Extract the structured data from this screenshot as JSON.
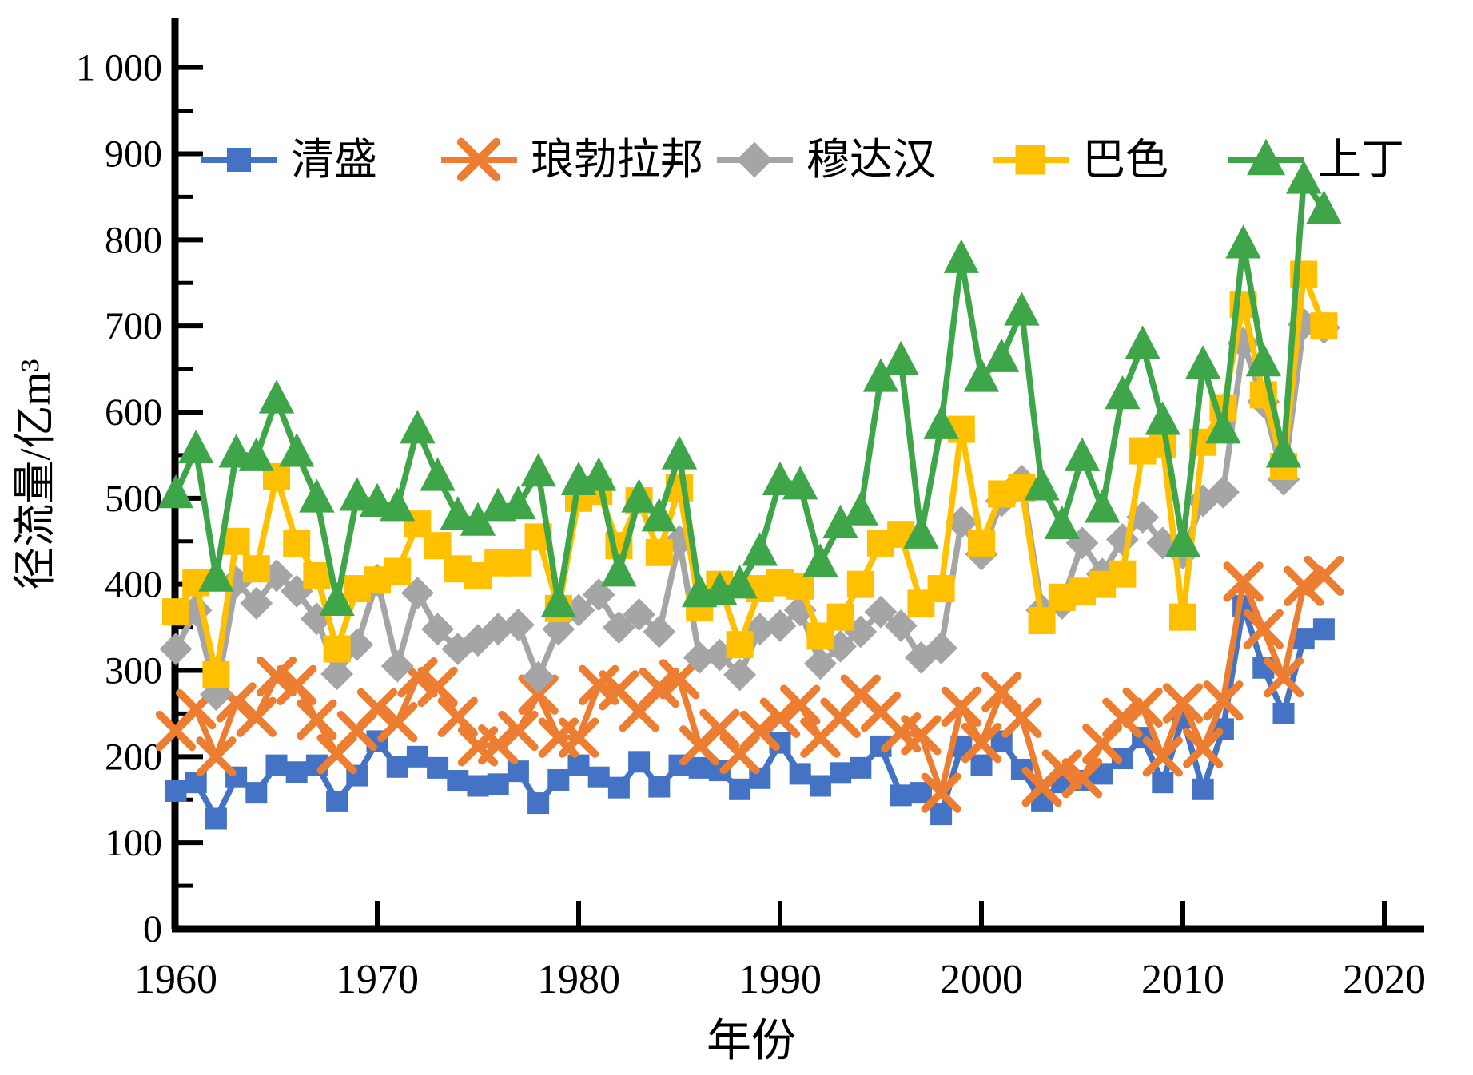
{
  "figure": {
    "y_axis": {
      "label": "径流量/亿m³",
      "tick_labels": [
        "0",
        "100",
        "200",
        "300",
        "400",
        "500",
        "600",
        "700",
        "800",
        "900",
        "1 000"
      ],
      "tick_values": [
        0,
        100,
        200,
        300,
        400,
        500,
        600,
        700,
        800,
        900,
        1000
      ],
      "minor_step": 50
    },
    "x_axis": {
      "label": "年份",
      "tick_labels": [
        "1960",
        "1970",
        "1980",
        "1990",
        "2000",
        "2010",
        "2020"
      ],
      "tick_values": [
        1960,
        1970,
        1980,
        1990,
        2000,
        2010,
        2020
      ]
    },
    "legend": [
      {
        "label": "清盛",
        "marker": "square",
        "color": "#4472C4"
      },
      {
        "label": "琅勃拉邦",
        "marker": "x",
        "color": "#ED7D31"
      },
      {
        "label": "穆达汉",
        "marker": "diamond",
        "color": "#A5A5A5"
      },
      {
        "label": "巴色",
        "marker": "square",
        "color": "#FFC000"
      },
      {
        "label": "上丁",
        "marker": "triangle",
        "color": "#3EA648"
      }
    ]
  },
  "chart_data": {
    "type": "line",
    "title": "",
    "xlabel": "年份",
    "ylabel": "径流量/亿m³",
    "xlim": [
      1957,
      2022
    ],
    "ylim": [
      0,
      1050
    ],
    "grid": false,
    "legend_position": "top",
    "x": [
      1960,
      1961,
      1962,
      1963,
      1964,
      1965,
      1966,
      1967,
      1968,
      1969,
      1970,
      1971,
      1972,
      1973,
      1974,
      1975,
      1976,
      1977,
      1978,
      1979,
      1980,
      1981,
      1982,
      1983,
      1984,
      1985,
      1986,
      1987,
      1988,
      1989,
      1990,
      1991,
      1992,
      1993,
      1994,
      1995,
      1996,
      1997,
      1998,
      1999,
      2000,
      2001,
      2002,
      2003,
      2004,
      2005,
      2006,
      2007,
      2008,
      2009,
      2010,
      2011,
      2012,
      2013,
      2014,
      2015,
      2016,
      2017
    ],
    "series": [
      {
        "name": "清盛",
        "marker": "square",
        "color": "#4472C4",
        "values": [
          160,
          170,
          128,
          176,
          158,
          190,
          182,
          190,
          148,
          178,
          218,
          188,
          200,
          187,
          172,
          166,
          168,
          183,
          146,
          173,
          190,
          176,
          164,
          194,
          165,
          190,
          187,
          184,
          162,
          175,
          216,
          180,
          166,
          181,
          187,
          212,
          155,
          158,
          133,
          212,
          190,
          218,
          185,
          148,
          170,
          172,
          180,
          198,
          222,
          170,
          245,
          162,
          232,
          375,
          303,
          250,
          337,
          348
        ]
      },
      {
        "name": "琅勃拉邦",
        "marker": "x",
        "color": "#ED7D31",
        "values": [
          230,
          255,
          200,
          263,
          246,
          293,
          283,
          243,
          203,
          230,
          256,
          240,
          292,
          281,
          246,
          212,
          214,
          230,
          272,
          222,
          222,
          283,
          277,
          252,
          280,
          290,
          213,
          232,
          203,
          230,
          245,
          260,
          222,
          245,
          272,
          252,
          228,
          225,
          158,
          258,
          216,
          275,
          245,
          165,
          185,
          175,
          215,
          245,
          257,
          200,
          262,
          210,
          265,
          403,
          348,
          292,
          398,
          410
        ]
      },
      {
        "name": "穆达汉",
        "marker": "diamond",
        "color": "#A5A5A5",
        "values": [
          325,
          370,
          272,
          403,
          378,
          410,
          392,
          360,
          296,
          330,
          405,
          305,
          390,
          348,
          325,
          335,
          348,
          353,
          292,
          348,
          370,
          388,
          350,
          365,
          345,
          450,
          315,
          318,
          295,
          348,
          352,
          370,
          308,
          328,
          345,
          368,
          352,
          315,
          326,
          472,
          435,
          497,
          520,
          370,
          378,
          448,
          412,
          452,
          478,
          448,
          436,
          497,
          507,
          680,
          612,
          522,
          702,
          698
        ]
      },
      {
        "name": "巴色",
        "marker": "square",
        "color": "#FFC000",
        "values": [
          368,
          402,
          295,
          450,
          418,
          525,
          448,
          410,
          325,
          395,
          405,
          415,
          470,
          445,
          418,
          410,
          425,
          425,
          455,
          372,
          500,
          508,
          445,
          497,
          437,
          512,
          373,
          400,
          330,
          395,
          402,
          398,
          340,
          362,
          400,
          448,
          458,
          378,
          395,
          580,
          448,
          505,
          512,
          358,
          385,
          392,
          400,
          412,
          555,
          563,
          362,
          565,
          605,
          725,
          620,
          537,
          760,
          700
        ]
      },
      {
        "name": "上丁",
        "marker": "triangle",
        "color": "#3EA648",
        "values": [
          505,
          557,
          408,
          552,
          548,
          615,
          553,
          500,
          380,
          502,
          495,
          490,
          580,
          525,
          480,
          473,
          490,
          492,
          530,
          378,
          520,
          525,
          414,
          500,
          478,
          550,
          390,
          392,
          400,
          438,
          520,
          515,
          425,
          470,
          485,
          640,
          660,
          458,
          585,
          778,
          640,
          663,
          717,
          514,
          469,
          548,
          488,
          620,
          678,
          590,
          448,
          655,
          580,
          795,
          658,
          552,
          870,
          835
        ]
      }
    ]
  }
}
